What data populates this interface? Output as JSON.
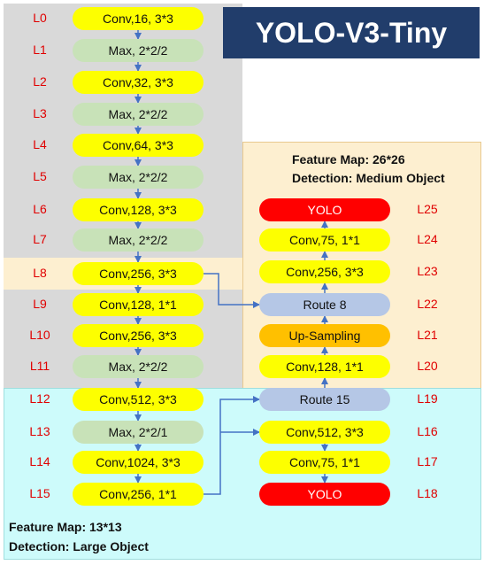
{
  "title": "YOLO-V3-Tiny",
  "medium_note": {
    "line1": "Feature Map: 26*26",
    "line2": "Detection: Medium Object"
  },
  "large_note": {
    "line1": "Feature Map: 13*13",
    "line2": "Detection: Large Object"
  },
  "left_column": [
    {
      "layer": "L0",
      "label": "Conv,16, 3*3",
      "kind": "conv"
    },
    {
      "layer": "L1",
      "label": "Max, 2*2/2",
      "kind": "max"
    },
    {
      "layer": "L2",
      "label": "Conv,32, 3*3",
      "kind": "conv"
    },
    {
      "layer": "L3",
      "label": "Max, 2*2/2",
      "kind": "max"
    },
    {
      "layer": "L4",
      "label": "Conv,64, 3*3",
      "kind": "conv"
    },
    {
      "layer": "L5",
      "label": "Max, 2*2/2",
      "kind": "max"
    },
    {
      "layer": "L6",
      "label": "Conv,128, 3*3",
      "kind": "conv"
    },
    {
      "layer": "L7",
      "label": "Max, 2*2/2",
      "kind": "max"
    },
    {
      "layer": "L8",
      "label": "Conv,256, 3*3",
      "kind": "conv"
    },
    {
      "layer": "L9",
      "label": "Conv,128, 1*1",
      "kind": "conv"
    },
    {
      "layer": "L10",
      "label": "Conv,256, 3*3",
      "kind": "conv"
    },
    {
      "layer": "L11",
      "label": "Max, 2*2/2",
      "kind": "max"
    },
    {
      "layer": "L12",
      "label": "Conv,512, 3*3",
      "kind": "conv"
    },
    {
      "layer": "L13",
      "label": "Max, 2*2/1",
      "kind": "max"
    },
    {
      "layer": "L14",
      "label": "Conv,1024, 3*3",
      "kind": "conv"
    },
    {
      "layer": "L15",
      "label": "Conv,256, 1*1",
      "kind": "conv"
    }
  ],
  "right_column": [
    {
      "layer": "L25",
      "label": "YOLO",
      "kind": "yolo"
    },
    {
      "layer": "L24",
      "label": "Conv,75, 1*1",
      "kind": "conv"
    },
    {
      "layer": "L23",
      "label": "Conv,256, 3*3",
      "kind": "conv"
    },
    {
      "layer": "L22",
      "label": "Route 8",
      "kind": "route"
    },
    {
      "layer": "L21",
      "label": "Up-Sampling",
      "kind": "upsample"
    },
    {
      "layer": "L20",
      "label": "Conv,128, 1*1",
      "kind": "conv"
    },
    {
      "layer": "L19",
      "label": "Route 15",
      "kind": "route"
    },
    {
      "layer": "L16",
      "label": "Conv,512, 3*3",
      "kind": "conv"
    },
    {
      "layer": "L17",
      "label": "Conv,75, 1*1",
      "kind": "conv"
    },
    {
      "layer": "L18",
      "label": "YOLO",
      "kind": "yolo"
    }
  ],
  "colors": {
    "conv": "#fdff00",
    "max": "#c8e2b8",
    "yolo": "#ff0000",
    "route": "#b5c7e6",
    "upsample": "#ffc000",
    "arrow": "#4472c4",
    "layer_label": "#e00000",
    "title_bg": "#213d6b"
  }
}
